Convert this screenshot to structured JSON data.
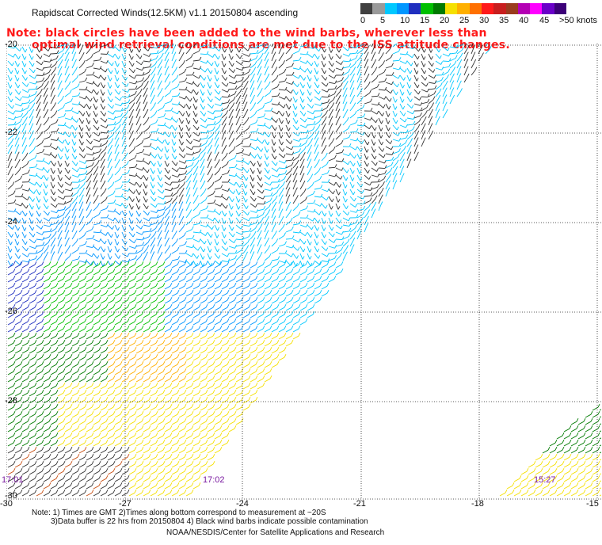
{
  "header": {
    "title": "Rapidscat Corrected Winds(12.5KM) v1.1 20150804 ascending",
    "note_line1": "Note: black circles have been added to the wind barbs, wherever less than",
    "note_line2": "optimal wind retrieval conditions are met due to the ISS attitude changes."
  },
  "legend": {
    "labels": [
      "0",
      "5",
      "10",
      "15",
      "20",
      "25",
      "30",
      "35",
      "40",
      "45",
      ">50 knots"
    ],
    "colors": [
      "#404040",
      "#9a9a9a",
      "#00c8ff",
      "#0096ff",
      "#1f2fbf",
      "#00c000",
      "#007a00",
      "#f5e000",
      "#ffb000",
      "#ff7000",
      "#ff1a1a",
      "#c81e1e",
      "#9a3c1e",
      "#b400b4",
      "#ff00ff",
      "#6a00c8",
      "#3c0078"
    ]
  },
  "map": {
    "lat_labels": [
      "-20",
      "-22",
      "-24",
      "-26",
      "-28",
      "-30"
    ],
    "lon_labels": [
      "-30",
      "-27",
      "-24",
      "-21",
      "-18",
      "-15"
    ],
    "time_labels": [
      "17:01",
      "17:02",
      "15:27"
    ]
  },
  "footer": {
    "note_line1": "Note: 1) Times are GMT 2)Times along bottom correspond to measurement at ~20S",
    "note_line2": "3)Data buffer is 22 hrs from 20150804 4) Black wind barbs indicate possible contamination",
    "credit": "NOAA/NESDIS/Center for Satellite Applications and Research"
  }
}
